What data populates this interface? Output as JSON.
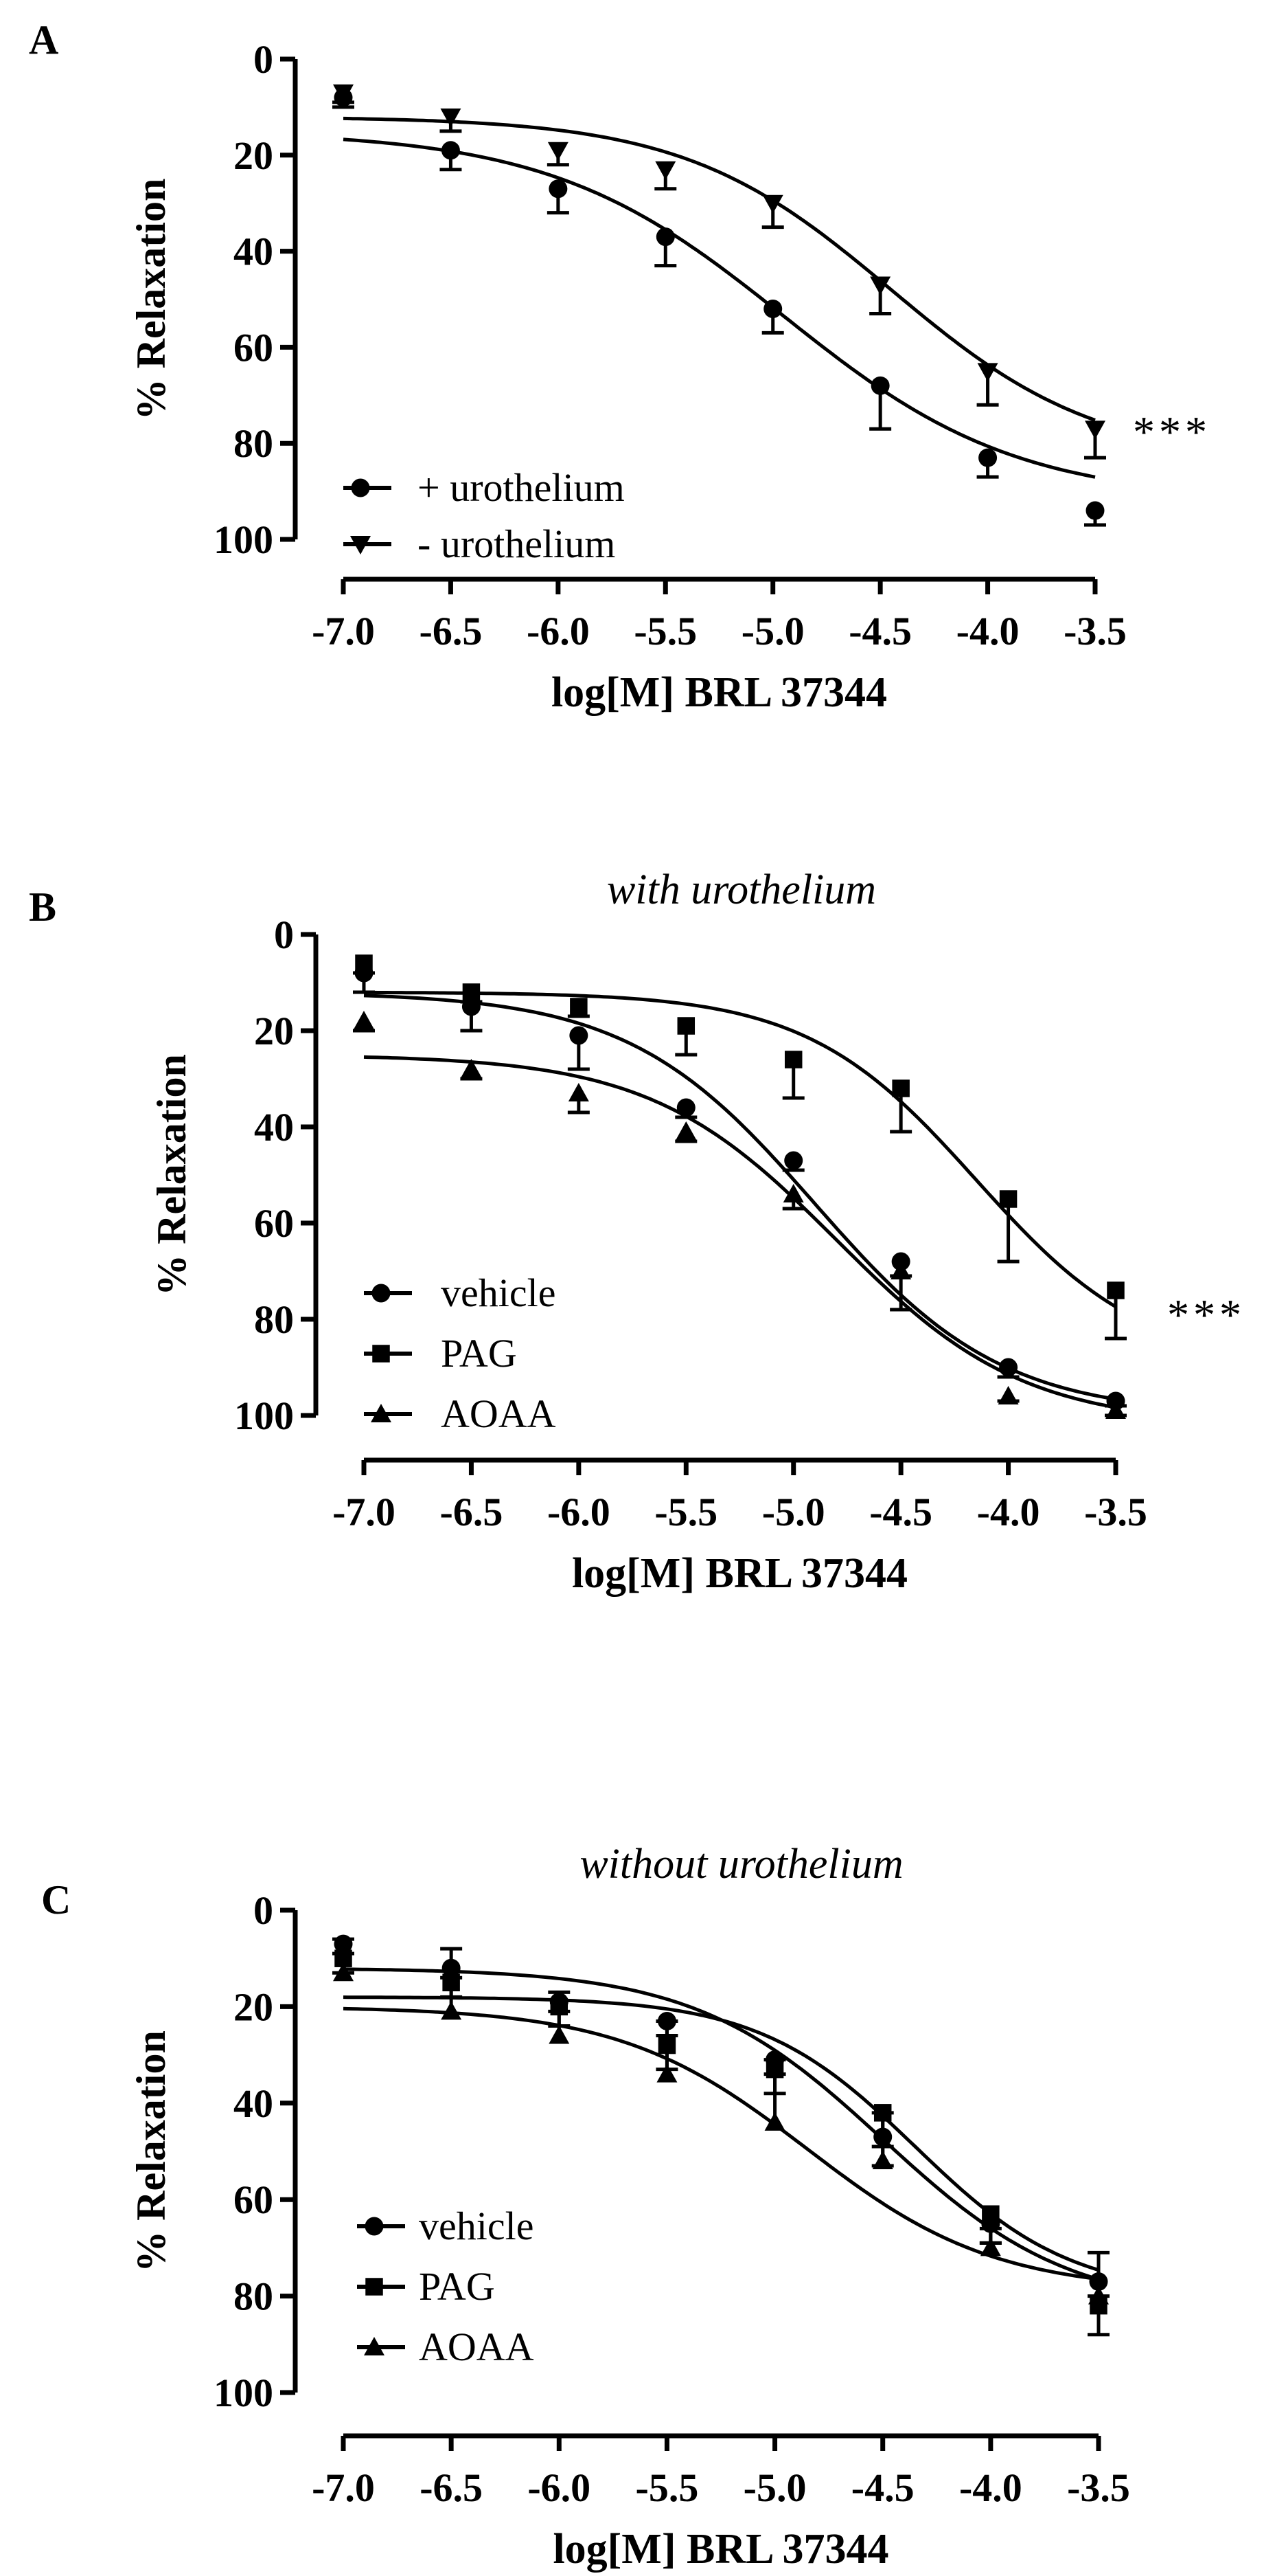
{
  "chart_data": [
    {
      "type": "line",
      "panel_label": "A",
      "title": "",
      "xlabel": "log[M] BRL 37344",
      "ylabel": "% Relaxation",
      "x_ticks": [
        "-7.0",
        "-6.5",
        "-6.0",
        "-5.5",
        "-5.0",
        "-4.5",
        "-4.0",
        "-3.5"
      ],
      "y_ticks": [
        "0",
        "20",
        "40",
        "60",
        "80",
        "100"
      ],
      "xlim": [
        -7.0,
        -3.5
      ],
      "ylim": [
        0,
        100
      ],
      "y_inverted": true,
      "x": [
        -7.0,
        -6.5,
        -6.0,
        -5.5,
        -5.0,
        -4.5,
        -4.0,
        -3.5
      ],
      "series": [
        {
          "name": "+ urothelium",
          "marker": "circle",
          "values": [
            8,
            19,
            27,
            37,
            52,
            68,
            83,
            94
          ],
          "errors": [
            2,
            4,
            5,
            6,
            5,
            9,
            4,
            3
          ],
          "fit": {
            "bottom": 15,
            "top": 92,
            "logEC50": -4.95,
            "hill": 0.8
          }
        },
        {
          "name": "- urothelium",
          "marker": "triangle-down",
          "values": [
            7,
            12,
            19,
            23,
            30,
            47,
            65,
            77
          ],
          "errors": [
            2,
            3,
            3,
            4,
            5,
            6,
            7,
            6
          ],
          "fit": {
            "bottom": 12,
            "top": 84,
            "logEC50": -4.45,
            "hill": 0.9
          }
        }
      ],
      "significance": "***"
    },
    {
      "type": "line",
      "panel_label": "B",
      "title": "with urothelium",
      "xlabel": "log[M] BRL 37344",
      "ylabel": "% Relaxation",
      "x_ticks": [
        "-7.0",
        "-6.5",
        "-6.0",
        "-5.5",
        "-5.0",
        "-4.5",
        "-4.0",
        "-3.5"
      ],
      "y_ticks": [
        "0",
        "20",
        "40",
        "60",
        "80",
        "100"
      ],
      "xlim": [
        -7.0,
        -3.5
      ],
      "ylim": [
        0,
        100
      ],
      "y_inverted": true,
      "x": [
        -7.0,
        -6.5,
        -6.0,
        -5.5,
        -5.0,
        -4.5,
        -4.0,
        -3.5
      ],
      "series": [
        {
          "name": "vehicle",
          "marker": "circle",
          "values": [
            8,
            15,
            21,
            36,
            47,
            68,
            90,
            97
          ],
          "errors": [
            4,
            5,
            7,
            2,
            2,
            3,
            2,
            1
          ],
          "fit": {
            "bottom": 12,
            "top": 100,
            "logEC50": -4.9,
            "hill": 1.0
          }
        },
        {
          "name": "PAG",
          "marker": "square",
          "values": [
            6,
            12,
            15,
            19,
            26,
            32,
            55,
            74
          ],
          "errors": [
            2,
            2,
            2,
            6,
            8,
            9,
            13,
            10
          ],
          "fit": {
            "bottom": 12,
            "top": 90,
            "logEC50": -4.15,
            "hill": 1.1
          }
        },
        {
          "name": "AOAA",
          "marker": "triangle-up",
          "values": [
            18,
            28,
            33,
            41,
            54,
            70,
            96,
            99
          ],
          "errors": [
            2,
            2,
            4,
            2,
            3,
            8,
            1,
            1
          ],
          "fit": {
            "bottom": 25,
            "top": 102,
            "logEC50": -4.8,
            "hill": 1.0
          }
        }
      ],
      "significance": "***"
    },
    {
      "type": "line",
      "panel_label": "C",
      "title": "without urothelium",
      "xlabel": "log[M] BRL 37344",
      "ylabel": "% Relaxation",
      "x_ticks": [
        "-7.0",
        "-6.5",
        "-6.0",
        "-5.5",
        "-5.0",
        "-4.5",
        "-4.0",
        "-3.5"
      ],
      "y_ticks": [
        "0",
        "20",
        "40",
        "60",
        "80",
        "100"
      ],
      "xlim": [
        -7.0,
        -3.5
      ],
      "ylim": [
        0,
        100
      ],
      "y_inverted": true,
      "x": [
        -7.0,
        -6.5,
        -6.0,
        -5.5,
        -5.0,
        -4.5,
        -4.0,
        -3.5
      ],
      "series": [
        {
          "name": "vehicle",
          "marker": "circle",
          "values": [
            7,
            12,
            19,
            23,
            31,
            47,
            65,
            77
          ],
          "errors": [
            2,
            2,
            2,
            3,
            3,
            6,
            4,
            3
          ],
          "fit": {
            "bottom": 12,
            "top": 83,
            "logEC50": -4.5,
            "hill": 1.0
          }
        },
        {
          "name": "PAG",
          "marker": "square",
          "values": [
            10,
            15,
            20,
            28,
            33,
            42,
            63,
            82
          ],
          "errors": [
            3,
            3,
            4,
            5,
            5,
            7,
            6,
            6
          ],
          "fit": {
            "bottom": 18,
            "top": 80,
            "logEC50": -4.35,
            "hill": 1.2
          }
        },
        {
          "name": "AOAA",
          "marker": "triangle-up",
          "values": [
            13,
            21,
            26,
            34,
            44,
            52,
            70,
            80
          ],
          "errors": [
            7,
            13,
            9,
            11,
            13,
            10,
            4,
            9
          ],
          "fit": {
            "bottom": 20,
            "top": 79,
            "logEC50": -4.85,
            "hill": 1.0
          }
        }
      ],
      "significance": ""
    }
  ]
}
